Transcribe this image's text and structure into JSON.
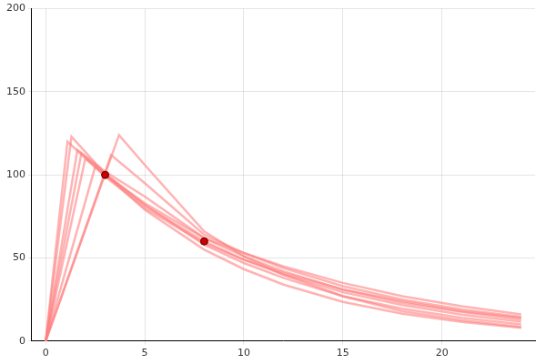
{
  "chart_data": {
    "type": "line",
    "xlim": [
      -0.7,
      24.7
    ],
    "xticks": [
      0,
      5,
      10,
      15,
      20
    ],
    "ylim": [
      0,
      200
    ],
    "yticks": [
      0,
      50,
      100,
      150,
      200
    ],
    "grid": true,
    "series": [
      {
        "color": "#ff8080",
        "line_style": "solid",
        "marker": "none",
        "x": [
          0,
          1.3,
          3,
          5,
          8,
          10,
          12,
          15,
          18,
          21,
          24
        ],
        "values": [
          0,
          123,
          100.6,
          79,
          55,
          43.3,
          34,
          23.6,
          16.5,
          11.5,
          8
        ]
      },
      {
        "color": "#ff8080",
        "line_style": "solid",
        "marker": "none",
        "x": [
          0,
          3.7,
          5,
          8,
          10,
          12,
          15,
          18,
          21,
          24
        ],
        "values": [
          0,
          124,
          106,
          66,
          51,
          40,
          27,
          18,
          12.5,
          8.5
        ]
      },
      {
        "color": "#ff8080",
        "line_style": "solid",
        "marker": "none",
        "x": [
          0,
          2,
          3,
          5,
          8,
          10,
          12,
          15,
          18,
          21,
          24
        ],
        "values": [
          0,
          110,
          100,
          81.5,
          60,
          49,
          40,
          29.4,
          21.7,
          15.9,
          11.7
        ]
      },
      {
        "color": "#ff8080",
        "line_style": "solid",
        "marker": "none",
        "x": [
          0,
          1.6,
          3,
          5,
          8,
          10,
          12,
          15,
          18,
          21,
          24
        ],
        "values": [
          0,
          115,
          102,
          87,
          62,
          53,
          45,
          35,
          27,
          21,
          16
        ]
      },
      {
        "color": "#ff8080",
        "line_style": "solid",
        "marker": "none",
        "x": [
          0,
          2.5,
          3,
          5,
          8,
          10,
          12,
          15,
          18,
          21,
          24
        ],
        "values": [
          0,
          105,
          100,
          83,
          62,
          51,
          42,
          31,
          23,
          17.5,
          13
        ]
      },
      {
        "color": "#ff8080",
        "line_style": "solid",
        "marker": "none",
        "x": [
          0,
          1.8,
          3,
          5,
          8,
          10,
          12,
          15,
          18,
          21,
          24
        ],
        "values": [
          0,
          113,
          101,
          82,
          58,
          47,
          38,
          27,
          19.5,
          14,
          10
        ]
      },
      {
        "color": "#ff8080",
        "line_style": "solid",
        "marker": "none",
        "x": [
          0,
          3.3,
          5,
          8,
          10,
          12,
          15,
          18,
          21,
          24
        ],
        "values": [
          0,
          112,
          95,
          64,
          53,
          44,
          33,
          25,
          19,
          14.5
        ]
      },
      {
        "color": "#ff8080",
        "line_style": "solid",
        "marker": "none",
        "x": [
          0,
          1.1,
          3,
          5,
          8,
          10,
          12,
          15,
          18,
          21,
          24
        ],
        "values": [
          0,
          120,
          99,
          80,
          59,
          49,
          41,
          31,
          24,
          18,
          14
        ]
      },
      {
        "type": "scatter",
        "color": "#cc0000",
        "marker": "circle",
        "x": [
          3,
          8
        ],
        "values": [
          100,
          60
        ]
      }
    ]
  }
}
